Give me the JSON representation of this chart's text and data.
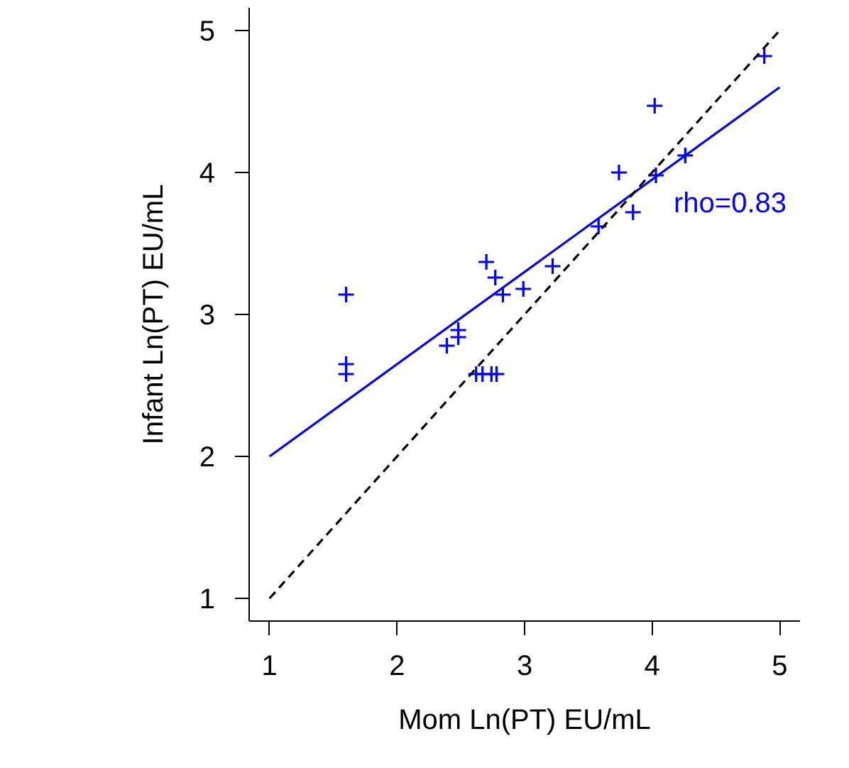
{
  "chart_data": {
    "type": "scatter",
    "xlabel": "Mom Ln(PT) EU/mL",
    "ylabel": "Infant Ln(PT) EU/mL",
    "xlim": [
      0.84,
      5.16
    ],
    "ylim": [
      0.84,
      5.16
    ],
    "xticks": [
      1,
      2,
      3,
      4,
      5
    ],
    "yticks": [
      1,
      2,
      3,
      4,
      5
    ],
    "series": [
      {
        "marker": "cross",
        "color": "#0000ff",
        "x": [
          1.6,
          1.6,
          1.6,
          2.39,
          2.48,
          2.48,
          2.62,
          2.67,
          2.74,
          2.78,
          2.7,
          2.77,
          2.83,
          2.99,
          3.22,
          4.88,
          4.02,
          4.26,
          4.03,
          3.74,
          3.85,
          3.58
        ],
        "values": [
          3.14,
          2.65,
          2.58,
          2.78,
          2.89,
          2.84,
          2.58,
          2.58,
          2.58,
          2.58,
          3.37,
          3.26,
          3.14,
          3.18,
          3.34,
          4.82,
          4.47,
          4.12,
          3.98,
          4.0,
          3.72,
          3.62
        ]
      },
      {
        "type": "line",
        "color": "#0000ff",
        "line_style": "solid",
        "x": [
          1,
          5
        ],
        "values": [
          2.0,
          4.6
        ]
      },
      {
        "type": "line",
        "color": "#000000",
        "line_style": "dashed",
        "x": [
          1,
          5
        ],
        "values": [
          1,
          5
        ]
      }
    ],
    "annotations": [
      "rho=0.83"
    ]
  }
}
